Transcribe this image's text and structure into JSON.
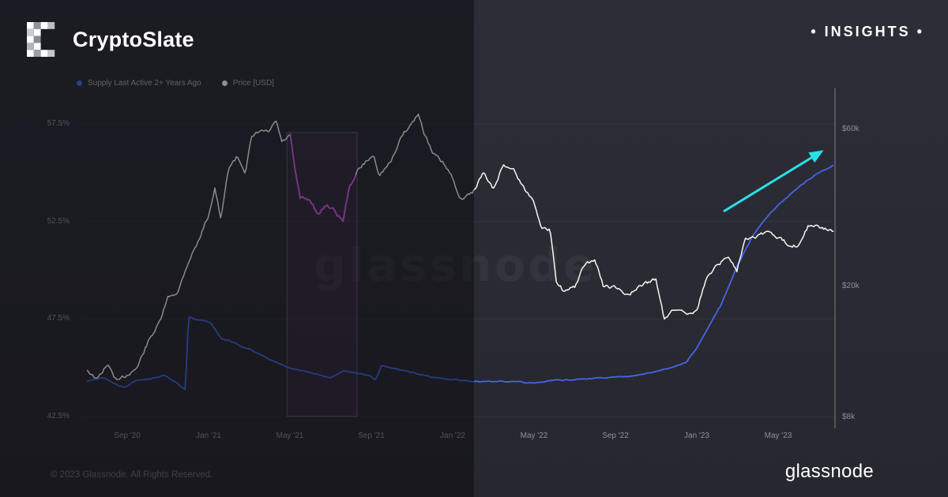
{
  "header": {
    "brand": "CryptoSlate",
    "badge": "• INSIGHTS •"
  },
  "footer": {
    "copyright": "© 2023 Glassnode. All Rights Reserved.",
    "brand": "glassnode"
  },
  "chart_data": {
    "type": "line",
    "watermark": "glassnode",
    "legend": [
      {
        "label": "Supply Last Active 2+ Years Ago",
        "color": "#4a6cf7"
      },
      {
        "label": "Price [USD]",
        "color": "#ffffff"
      }
    ],
    "left_axis": {
      "ticks": [
        "57.5%",
        "52.5%",
        "47.5%",
        "42.5%"
      ],
      "tick_values": [
        57.5,
        52.5,
        47.5,
        42.5
      ],
      "unit": "%"
    },
    "right_axis": {
      "ticks": [
        "$60k",
        "$20k",
        "$8k"
      ],
      "tick_values": [
        60000,
        20000,
        8000
      ],
      "scale": "log",
      "unit": "USD"
    },
    "x_axis": {
      "ticks": [
        "Sep '20",
        "Jan '21",
        "May '21",
        "Sep '21",
        "Jan '22",
        "May '22",
        "Sep '22",
        "Jan '23",
        "May '23"
      ],
      "tick_months": [
        2,
        6,
        10,
        14,
        18,
        22,
        26,
        30,
        34
      ],
      "epoch": "Jul '20"
    },
    "series": [
      {
        "name": "Supply Last Active 2+ Years Ago",
        "axis": "left",
        "color": "#4366e8",
        "x": [
          0,
          0.8,
          1.5,
          1.9,
          2.4,
          3,
          3.8,
          4.4,
          4.85,
          5.0,
          5.6,
          6.1,
          6.6,
          7,
          7.6,
          8.2,
          9,
          9.8,
          10.5,
          11.2,
          12,
          12.6,
          13.2,
          13.9,
          14.2,
          14.5,
          15.2,
          16,
          17,
          18,
          19,
          20,
          21,
          22,
          23,
          24,
          25,
          26,
          27,
          28,
          28.8,
          29.5,
          30,
          30.6,
          31.2,
          32,
          32.8,
          33.6,
          34.4,
          35.2,
          36,
          36.8
        ],
        "y": [
          44.3,
          44.5,
          44.1,
          44.0,
          44.35,
          44.4,
          44.6,
          44.25,
          43.85,
          47.6,
          47.45,
          47.3,
          46.5,
          46.4,
          46.1,
          45.85,
          45.4,
          45.05,
          44.85,
          44.7,
          44.5,
          44.85,
          44.75,
          44.6,
          44.35,
          45.1,
          44.95,
          44.75,
          44.5,
          44.4,
          44.3,
          44.3,
          44.3,
          44.2,
          44.35,
          44.4,
          44.45,
          44.5,
          44.6,
          44.8,
          45.0,
          45.3,
          46.0,
          47.1,
          48.2,
          50.2,
          51.8,
          52.9,
          53.7,
          54.4,
          55.0,
          55.4
        ]
      },
      {
        "name": "Price [USD]",
        "axis": "right",
        "color": "#f5f6fa",
        "x": [
          0,
          0.5,
          1,
          1.5,
          2,
          2.5,
          3,
          3.6,
          4,
          4.5,
          5,
          5.5,
          6,
          6.3,
          6.6,
          7,
          7.4,
          7.8,
          8.1,
          8.5,
          9,
          9.3,
          9.6,
          10,
          10.25,
          10.5,
          11,
          11.4,
          11.8,
          12.2,
          12.6,
          12.9,
          13.3,
          13.7,
          14.1,
          14.4,
          15,
          15.5,
          16,
          16.3,
          16.6,
          17,
          17.5,
          18,
          18.4,
          19,
          19.5,
          20,
          20.5,
          21,
          21.5,
          22,
          22.4,
          22.8,
          23.1,
          23.5,
          24,
          24.5,
          25,
          25.4,
          26,
          26.5,
          27,
          27.5,
          28,
          28.4,
          29,
          29.5,
          30,
          30.5,
          31,
          31.6,
          32,
          32.4,
          33,
          33.5,
          34,
          34.5,
          35,
          35.5,
          36,
          36.8
        ],
        "y": [
          11200,
          10400,
          11600,
          10250,
          10800,
          11400,
          13500,
          15600,
          18500,
          19300,
          23800,
          27500,
          33000,
          39800,
          31500,
          46000,
          49500,
          44500,
          56000,
          59000,
          58800,
          63500,
          54500,
          57500,
          44000,
          37000,
          36500,
          33000,
          35500,
          33800,
          31500,
          39500,
          44500,
          47500,
          50000,
          43500,
          48000,
          57500,
          62500,
          66800,
          58500,
          50500,
          47500,
          42500,
          36800,
          38500,
          44200,
          39200,
          46800,
          45200,
          39700,
          36200,
          30000,
          29500,
          21000,
          19200,
          19800,
          23200,
          24100,
          20100,
          19800,
          18900,
          19400,
          20500,
          20900,
          16100,
          17100,
          16700,
          16800,
          21100,
          23300,
          24600,
          22400,
          28200,
          28500,
          29400,
          28000,
          26900,
          26600,
          30600,
          30200,
          29400
        ]
      }
    ],
    "highlight_box": {
      "start_month": 9.85,
      "end_month": 13.3,
      "fill": "rgba(190,90,200,0.08)",
      "border": "rgba(230,220,235,0.28)"
    },
    "highlight_segment": {
      "start_month": 9.95,
      "end_month": 13.25,
      "color": "#d55ce3"
    },
    "arrow": {
      "color": "#28e0ea"
    }
  }
}
